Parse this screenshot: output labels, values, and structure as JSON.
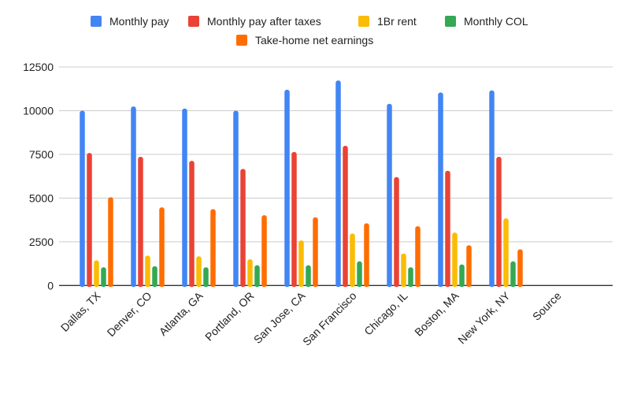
{
  "chart_data": {
    "type": "bar",
    "categories": [
      "Dallas, TX",
      "Denver, CO",
      "Atlanta, GA",
      "Portland, OR",
      "San Jose, CA",
      "San Francisco",
      "Chicago, IL",
      "Boston, MA",
      "New York, NY",
      "Source"
    ],
    "series": [
      {
        "name": "Monthly pay",
        "color": "#4285f4",
        "values": [
          10000,
          10240,
          10120,
          10000,
          11200,
          11730,
          10390,
          11040,
          11160,
          null
        ]
      },
      {
        "name": "Monthly pay after taxes",
        "color": "#ea4335",
        "values": [
          7580,
          7360,
          7130,
          6670,
          7640,
          7990,
          6200,
          6560,
          7360,
          null
        ]
      },
      {
        "name": "1Br rent",
        "color": "#fbbc04",
        "values": [
          1440,
          1710,
          1670,
          1500,
          2580,
          2970,
          1830,
          3030,
          3840,
          null
        ]
      },
      {
        "name": "Monthly COL",
        "color": "#34a853",
        "values": [
          1040,
          1100,
          1040,
          1160,
          1160,
          1380,
          1040,
          1200,
          1380,
          null
        ]
      },
      {
        "name": "Take-home net earnings",
        "color": "#ff6d01",
        "values": [
          5050,
          4470,
          4370,
          4020,
          3900,
          3560,
          3390,
          2300,
          2070,
          null
        ]
      }
    ],
    "yticks": [
      "0",
      "2500",
      "5000",
      "7500",
      "10000",
      "12500"
    ],
    "ylim": [
      0,
      12500
    ],
    "grid": true,
    "legend": "top",
    "title": "",
    "xlabel": "",
    "ylabel": ""
  }
}
